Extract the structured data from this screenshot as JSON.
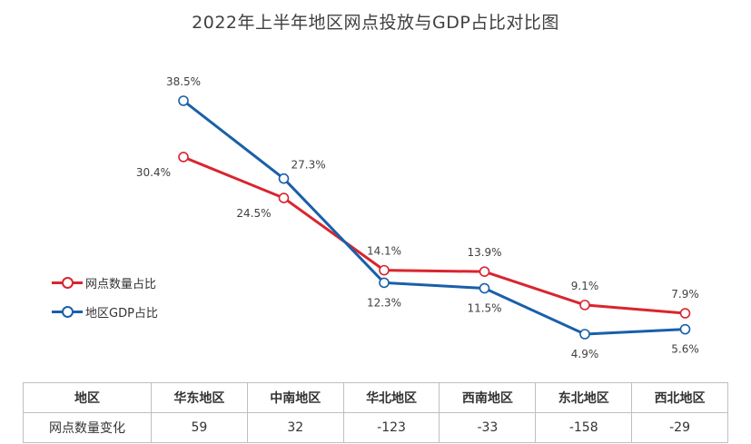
{
  "chart_data": {
    "type": "line",
    "title": "2022年上半年地区网点投放与GDP占比对比图",
    "categories": [
      "华东地区",
      "中南地区",
      "华北地区",
      "西南地区",
      "东北地区",
      "西北地区"
    ],
    "series": [
      {
        "name": "网点数量占比",
        "color": "#d9252e",
        "values": [
          30.4,
          24.5,
          14.1,
          13.9,
          9.1,
          7.9
        ],
        "labels": [
          "30.4%",
          "24.5%",
          "14.1%",
          "13.9%",
          "9.1%",
          "7.9%"
        ],
        "label_positions": [
          "left-below",
          "left-below",
          "above",
          "above",
          "above",
          "above"
        ]
      },
      {
        "name": "地区GDP占比",
        "color": "#1a5faa",
        "values": [
          38.5,
          27.3,
          12.3,
          11.5,
          4.9,
          5.6
        ],
        "labels": [
          "38.5%",
          "27.3%",
          "12.3%",
          "11.5%",
          "4.9%",
          "5.6%"
        ],
        "label_positions": [
          "above",
          "right-above",
          "below",
          "below",
          "below",
          "below"
        ]
      }
    ],
    "ylim": [
      0,
      45
    ],
    "grid": false,
    "legend": "left"
  },
  "table": {
    "header": [
      "地区",
      "华东地区",
      "中南地区",
      "华北地区",
      "西南地区",
      "东北地区",
      "西北地区"
    ],
    "row_label": "网点数量变化",
    "row_values": [
      "59",
      "32",
      "-123",
      "-33",
      "-158",
      "-29"
    ]
  }
}
